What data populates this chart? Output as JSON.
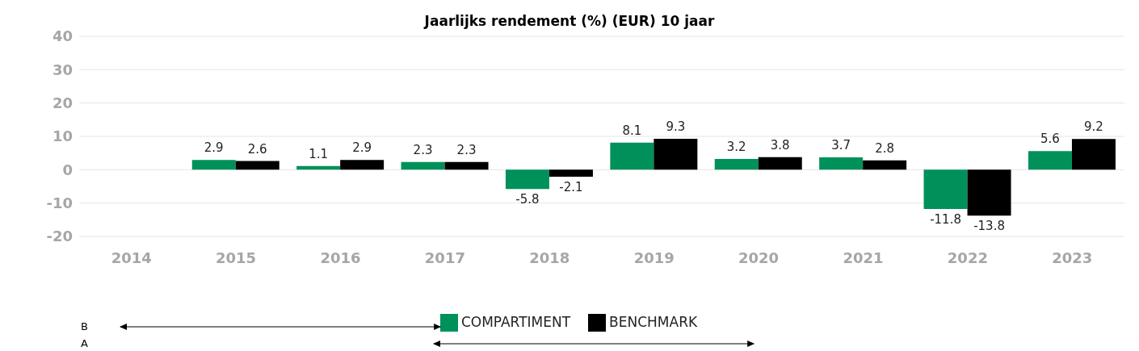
{
  "chart_data": {
    "type": "bar",
    "title": "Jaarlijks rendement (%) (EUR) 10 jaar",
    "categories": [
      "2014",
      "2015",
      "2016",
      "2017",
      "2018",
      "2019",
      "2020",
      "2021",
      "2022",
      "2023"
    ],
    "series": [
      {
        "name": "COMPARTIMENT",
        "color": "#00915a",
        "values": [
          null,
          2.9,
          1.1,
          2.3,
          -5.8,
          8.1,
          3.2,
          3.7,
          -11.8,
          5.6
        ]
      },
      {
        "name": "BENCHMARK",
        "color": "#000000",
        "values": [
          null,
          2.6,
          2.9,
          2.3,
          -2.1,
          9.3,
          3.8,
          2.8,
          -13.8,
          9.2
        ]
      }
    ],
    "ylim": [
      -20,
      40
    ],
    "yticks": [
      -20,
      -10,
      0,
      10,
      20,
      30,
      40
    ],
    "grid": "y",
    "legend": "bottom",
    "data_labels": true,
    "annotations": [
      "B",
      "A"
    ]
  }
}
